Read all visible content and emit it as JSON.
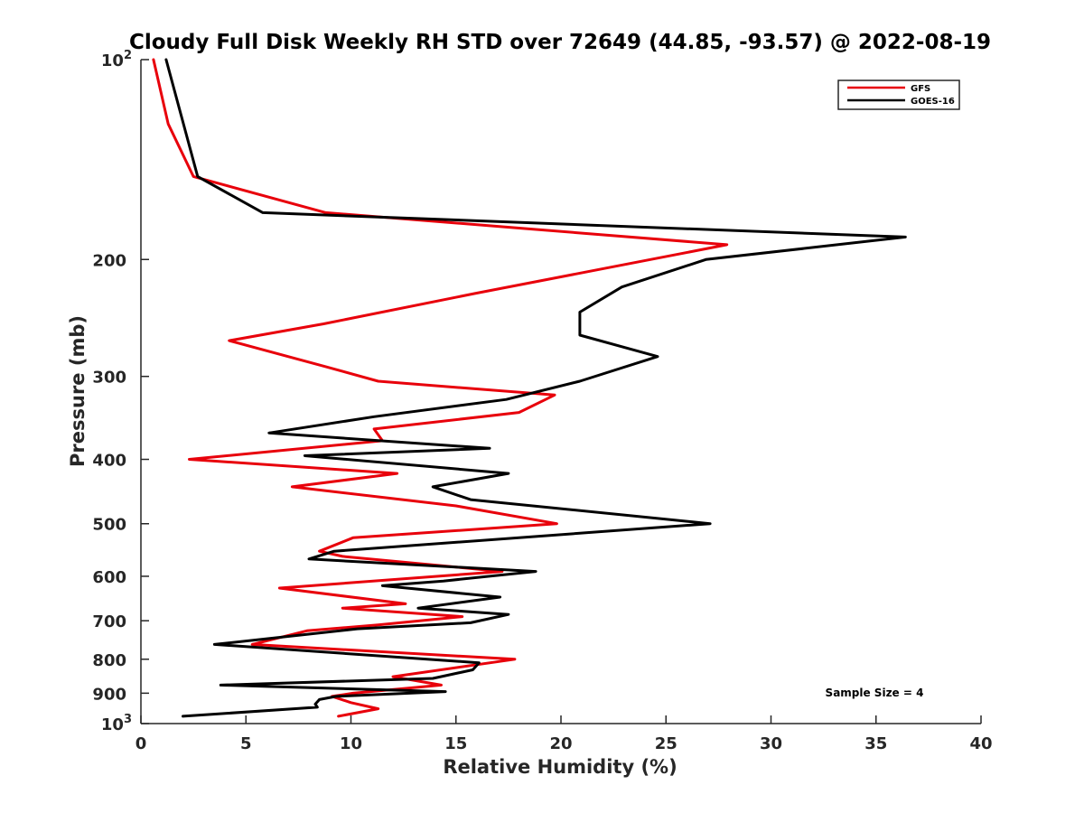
{
  "chart_data": {
    "type": "line",
    "title": "Cloudy Full Disk Weekly RH STD over 72649 (44.85, -93.57) @ 2022-08-19",
    "xlabel": "Relative Humidity (%)",
    "ylabel": "Pressure (mb)",
    "xlim": [
      0,
      40
    ],
    "ylim": [
      100,
      1000
    ],
    "y_scale": "log",
    "y_reversed": true,
    "x_ticks": [
      0,
      5,
      10,
      15,
      20,
      25,
      30,
      35,
      40
    ],
    "y_ticks": [
      {
        "value": 100,
        "label": "10",
        "sup": "2"
      },
      {
        "value": 200,
        "label": "200",
        "sup": ""
      },
      {
        "value": 300,
        "label": "300",
        "sup": ""
      },
      {
        "value": 400,
        "label": "400",
        "sup": ""
      },
      {
        "value": 500,
        "label": "500",
        "sup": ""
      },
      {
        "value": 600,
        "label": "600",
        "sup": ""
      },
      {
        "value": 700,
        "label": "700",
        "sup": ""
      },
      {
        "value": 800,
        "label": "800",
        "sup": ""
      },
      {
        "value": 900,
        "label": "900",
        "sup": ""
      },
      {
        "value": 1000,
        "label": "10",
        "sup": "3"
      }
    ],
    "grid": false,
    "legend_position": "top-right",
    "series": [
      {
        "name": "GFS",
        "color": "#e8000b",
        "points": [
          [
            0.6,
            100
          ],
          [
            1.3,
            125
          ],
          [
            2.5,
            150
          ],
          [
            8.8,
            170
          ],
          [
            27.9,
            190
          ],
          [
            15.9,
            225
          ],
          [
            8.7,
            250
          ],
          [
            4.2,
            265
          ],
          [
            8.8,
            290
          ],
          [
            11.3,
            305
          ],
          [
            19.7,
            320
          ],
          [
            18.0,
            340
          ],
          [
            11.1,
            360
          ],
          [
            11.5,
            375
          ],
          [
            2.3,
            400
          ],
          [
            12.2,
            420
          ],
          [
            7.2,
            440
          ],
          [
            15.0,
            470
          ],
          [
            19.8,
            500
          ],
          [
            10.1,
            525
          ],
          [
            8.5,
            550
          ],
          [
            9.6,
            560
          ],
          [
            17.2,
            590
          ],
          [
            6.6,
            625
          ],
          [
            12.6,
            660
          ],
          [
            9.6,
            670
          ],
          [
            15.3,
            690
          ],
          [
            11.3,
            710
          ],
          [
            7.9,
            725
          ],
          [
            5.3,
            760
          ],
          [
            17.8,
            800
          ],
          [
            12.0,
            850
          ],
          [
            14.3,
            875
          ],
          [
            10.1,
            900
          ],
          [
            9.1,
            910
          ],
          [
            10.0,
            930
          ],
          [
            11.3,
            950
          ],
          [
            9.4,
            975
          ]
        ]
      },
      {
        "name": "GOES-16",
        "color": "#000000",
        "points": [
          [
            1.2,
            100
          ],
          [
            2.7,
            150
          ],
          [
            5.8,
            170
          ],
          [
            36.4,
            185
          ],
          [
            26.9,
            200
          ],
          [
            22.9,
            220
          ],
          [
            20.9,
            240
          ],
          [
            20.9,
            260
          ],
          [
            24.6,
            280
          ],
          [
            20.9,
            305
          ],
          [
            17.4,
            325
          ],
          [
            11.1,
            345
          ],
          [
            6.1,
            365
          ],
          [
            16.6,
            385
          ],
          [
            7.8,
            395
          ],
          [
            17.5,
            420
          ],
          [
            13.9,
            440
          ],
          [
            15.7,
            460
          ],
          [
            27.1,
            500
          ],
          [
            9.2,
            550
          ],
          [
            8.0,
            565
          ],
          [
            18.8,
            590
          ],
          [
            14.4,
            610
          ],
          [
            11.5,
            620
          ],
          [
            17.1,
            645
          ],
          [
            13.2,
            670
          ],
          [
            17.5,
            685
          ],
          [
            15.7,
            705
          ],
          [
            10.3,
            720
          ],
          [
            3.5,
            760
          ],
          [
            16.1,
            810
          ],
          [
            15.8,
            830
          ],
          [
            13.9,
            855
          ],
          [
            3.8,
            875
          ],
          [
            14.5,
            895
          ],
          [
            9.3,
            910
          ],
          [
            8.5,
            920
          ],
          [
            8.3,
            935
          ],
          [
            8.4,
            945
          ],
          [
            2.0,
            975
          ]
        ]
      }
    ],
    "annotation": "Sample Size = 4"
  }
}
